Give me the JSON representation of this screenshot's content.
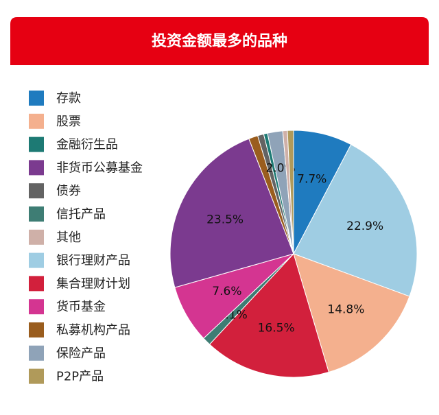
{
  "chart_data": {
    "type": "pie",
    "title": "投资金额最多的品种",
    "categories": [
      "存款",
      "股票",
      "金融衍生品",
      "非货币公募基金",
      "债券",
      "信托产品",
      "其他",
      "银行理财产品",
      "集合理财计划",
      "货币基金",
      "私募机构产品",
      "保险产品",
      "P2P产品"
    ],
    "values": [
      7.7,
      14.8,
      0.5,
      23.5,
      0.8,
      1.1,
      0.6,
      22.9,
      16.5,
      7.6,
      1.2,
      2.0,
      0.8
    ],
    "value_labels": [
      "7.7%",
      "14.8%",
      null,
      "23.5%",
      null,
      "1.1%",
      null,
      "22.9%",
      "16.5%",
      "7.6%",
      null,
      "2.0%",
      null
    ],
    "colors": [
      "#1f7bbf",
      "#f4b08e",
      "#1d7a74",
      "#7b3a8f",
      "#636363",
      "#3e7d74",
      "#cfb0a8",
      "#9fcde3",
      "#d2203c",
      "#d43591",
      "#9a5d1e",
      "#8fa3b8",
      "#b09a5a"
    ]
  }
}
